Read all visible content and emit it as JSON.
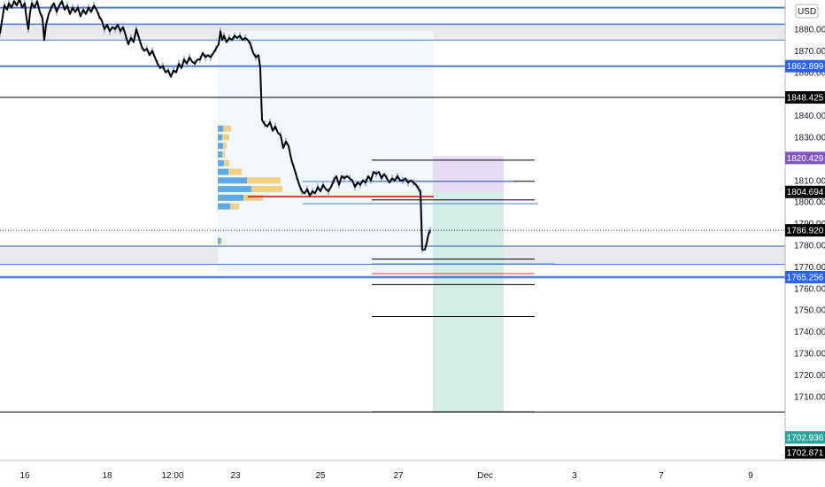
{
  "chart_data": {
    "type": "candlestick",
    "currency": "USD",
    "x_ticks": [
      "16",
      "18",
      "12:00",
      "23",
      "25",
      "27",
      "Dec",
      "3",
      "7",
      "9"
    ],
    "y_ticks": [
      "1880.000",
      "1870.000",
      "1860.000",
      "1840.000",
      "1830.000",
      "1810.000",
      "1800.000",
      "1790.000",
      "1780.000",
      "1770.000",
      "1760.000",
      "1750.000",
      "1740.000",
      "1730.000",
      "1720.000",
      "1710.000"
    ],
    "y_range": [
      1696,
      1891
    ],
    "current_price": 1786.92,
    "price_labels": [
      {
        "text": "1862.899",
        "value": 1862.899,
        "color": "#2962ff"
      },
      {
        "text": "1848.425",
        "value": 1848.425,
        "color": "#000000"
      },
      {
        "text": "1820.429",
        "value": 1820.429,
        "color": "#7e57c2"
      },
      {
        "text": "1804.694",
        "value": 1804.694,
        "color": "#000000"
      },
      {
        "text": "1786.920",
        "value": 1786.92,
        "color": "#000000"
      },
      {
        "text": "1765.256",
        "value": 1765.256,
        "color": "#2962ff"
      },
      {
        "text": "1702.936",
        "value": 1702.936,
        "color": "#26a69a"
      },
      {
        "text": "1702.871",
        "value": 1702.871,
        "color": "#000000"
      }
    ],
    "horizontal_lines": [
      {
        "value": 1890.0,
        "color": "#4a7ed8",
        "width": 2
      },
      {
        "value": 1882.3,
        "color": "#4a7ed8",
        "width": 1.5
      },
      {
        "value": 1875.0,
        "color": "#4a7ed8",
        "width": 1
      },
      {
        "value": 1862.899,
        "color": "#4a7ed8",
        "width": 2
      },
      {
        "value": 1848.425,
        "color": "#000000",
        "width": 1
      },
      {
        "value": 1779.6,
        "color": "#2f5da8",
        "width": 1
      },
      {
        "value": 1771.2,
        "color": "#4a7ed8",
        "width": 1
      },
      {
        "value": 1765.256,
        "color": "#4a7ed8",
        "width": 2.5
      },
      {
        "value": 1702.871,
        "color": "#000000",
        "width": 1
      }
    ],
    "zones": [
      {
        "from": 1875.0,
        "to": 1882.3,
        "color": "#d9dbe0"
      },
      {
        "from": 1771.2,
        "to": 1779.6,
        "color": "#d9dbe0"
      }
    ],
    "fib_levels": [
      1819.4,
      1809.6,
      1801.0,
      1773.6,
      1761.8,
      1747.0,
      1702.9
    ],
    "position": {
      "entry": 1804.694,
      "stop": 1820.429,
      "target": 1702.936
    },
    "price": [
      [
        0,
        1878
      ],
      [
        3,
        1886
      ],
      [
        5,
        1891
      ],
      [
        8,
        1889
      ],
      [
        10,
        1892
      ],
      [
        13,
        1890
      ],
      [
        16,
        1893
      ],
      [
        19,
        1891
      ],
      [
        22,
        1894
      ],
      [
        25,
        1890
      ],
      [
        28,
        1892
      ],
      [
        30,
        1885
      ],
      [
        32,
        1880
      ],
      [
        34,
        1888
      ],
      [
        36,
        1892
      ],
      [
        39,
        1890
      ],
      [
        42,
        1893
      ],
      [
        45,
        1888
      ],
      [
        48,
        1885
      ],
      [
        50,
        1875
      ],
      [
        52,
        1882
      ],
      [
        55,
        1887
      ],
      [
        58,
        1890
      ],
      [
        61,
        1892
      ],
      [
        64,
        1888
      ],
      [
        67,
        1891
      ],
      [
        70,
        1893
      ],
      [
        73,
        1889
      ],
      [
        76,
        1891
      ],
      [
        79,
        1887
      ],
      [
        82,
        1890
      ],
      [
        85,
        1888
      ],
      [
        88,
        1890
      ],
      [
        91,
        1886
      ],
      [
        94,
        1889
      ],
      [
        97,
        1887
      ],
      [
        100,
        1890
      ],
      [
        103,
        1888
      ],
      [
        106,
        1891
      ],
      [
        109,
        1889
      ],
      [
        112,
        1886
      ],
      [
        115,
        1884
      ],
      [
        118,
        1880
      ],
      [
        121,
        1882
      ],
      [
        124,
        1879
      ],
      [
        127,
        1881
      ],
      [
        130,
        1880
      ],
      [
        133,
        1882
      ],
      [
        136,
        1879
      ],
      [
        139,
        1881
      ],
      [
        142,
        1877
      ],
      [
        145,
        1873
      ],
      [
        148,
        1876
      ],
      [
        151,
        1874
      ],
      [
        154,
        1880
      ],
      [
        157,
        1876
      ],
      [
        160,
        1872
      ],
      [
        163,
        1870
      ],
      [
        166,
        1871
      ],
      [
        169,
        1868
      ],
      [
        172,
        1870
      ],
      [
        175,
        1867
      ],
      [
        178,
        1864
      ],
      [
        181,
        1862
      ],
      [
        184,
        1863
      ],
      [
        187,
        1860
      ],
      [
        190,
        1861
      ],
      [
        193,
        1858
      ],
      [
        196,
        1861
      ],
      [
        199,
        1860
      ],
      [
        202,
        1864
      ],
      [
        205,
        1862
      ],
      [
        208,
        1866
      ],
      [
        211,
        1864
      ],
      [
        214,
        1867
      ],
      [
        217,
        1865
      ],
      [
        220,
        1864
      ],
      [
        223,
        1866
      ],
      [
        226,
        1866
      ],
      [
        229,
        1869
      ],
      [
        232,
        1867
      ],
      [
        235,
        1868
      ],
      [
        238,
        1867
      ],
      [
        241,
        1869
      ],
      [
        244,
        1871
      ],
      [
        247,
        1873
      ],
      [
        249,
        1879
      ],
      [
        251,
        1875
      ],
      [
        253,
        1877
      ],
      [
        256,
        1874
      ],
      [
        259,
        1876
      ],
      [
        262,
        1875
      ],
      [
        265,
        1877
      ],
      [
        268,
        1876
      ],
      [
        271,
        1877
      ],
      [
        274,
        1875
      ],
      [
        277,
        1876
      ],
      [
        280,
        1875
      ],
      [
        283,
        1873
      ],
      [
        286,
        1869
      ],
      [
        289,
        1867
      ],
      [
        292,
        1868
      ],
      [
        294,
        1862
      ],
      [
        296,
        1838
      ],
      [
        299,
        1836
      ],
      [
        302,
        1835
      ],
      [
        305,
        1837
      ],
      [
        308,
        1833
      ],
      [
        311,
        1835
      ],
      [
        314,
        1832
      ],
      [
        317,
        1831
      ],
      [
        320,
        1825
      ],
      [
        323,
        1828
      ],
      [
        326,
        1826
      ],
      [
        329,
        1820
      ],
      [
        332,
        1816
      ],
      [
        335,
        1812
      ],
      [
        338,
        1808
      ],
      [
        341,
        1805
      ],
      [
        344,
        1804
      ],
      [
        347,
        1806
      ],
      [
        350,
        1803
      ],
      [
        353,
        1805
      ],
      [
        356,
        1804
      ],
      [
        359,
        1807
      ],
      [
        362,
        1805
      ],
      [
        365,
        1808
      ],
      [
        368,
        1806
      ],
      [
        371,
        1805
      ],
      [
        374,
        1807
      ],
      [
        377,
        1810
      ],
      [
        380,
        1812
      ],
      [
        383,
        1808
      ],
      [
        386,
        1812
      ],
      [
        389,
        1811
      ],
      [
        392,
        1812
      ],
      [
        395,
        1811
      ],
      [
        398,
        1810
      ],
      [
        401,
        1807
      ],
      [
        404,
        1809
      ],
      [
        407,
        1808
      ],
      [
        410,
        1810
      ],
      [
        413,
        1809
      ],
      [
        416,
        1812
      ],
      [
        419,
        1810
      ],
      [
        422,
        1814
      ],
      [
        425,
        1813
      ],
      [
        428,
        1814
      ],
      [
        431,
        1811
      ],
      [
        434,
        1813
      ],
      [
        437,
        1811
      ],
      [
        440,
        1809
      ],
      [
        443,
        1811
      ],
      [
        446,
        1810
      ],
      [
        449,
        1812
      ],
      [
        452,
        1810
      ],
      [
        455,
        1810
      ],
      [
        458,
        1811
      ],
      [
        461,
        1809
      ],
      [
        464,
        1810
      ],
      [
        467,
        1809
      ],
      [
        470,
        1808
      ],
      [
        473,
        1806
      ],
      [
        475,
        1805
      ],
      [
        477,
        1778
      ],
      [
        480,
        1778
      ],
      [
        482,
        1781
      ],
      [
        484,
        1785
      ],
      [
        486,
        1787
      ]
    ],
    "volume_profile": [
      {
        "value": 1834,
        "blue": 6,
        "orange": 9
      },
      {
        "value": 1830,
        "blue": 5,
        "orange": 8
      },
      {
        "value": 1826,
        "blue": 6,
        "orange": 4
      },
      {
        "value": 1822,
        "blue": 5,
        "orange": 3
      },
      {
        "value": 1818,
        "blue": 7,
        "orange": 6
      },
      {
        "value": 1814,
        "blue": 12,
        "orange": 15
      },
      {
        "value": 1810,
        "blue": 33,
        "orange": 38
      },
      {
        "value": 1806,
        "blue": 38,
        "orange": 35
      },
      {
        "value": 1802,
        "blue": 29,
        "orange": 22
      },
      {
        "value": 1798,
        "blue": 14,
        "orange": 10
      },
      {
        "value": 1782,
        "blue": 3,
        "orange": 2
      }
    ]
  }
}
